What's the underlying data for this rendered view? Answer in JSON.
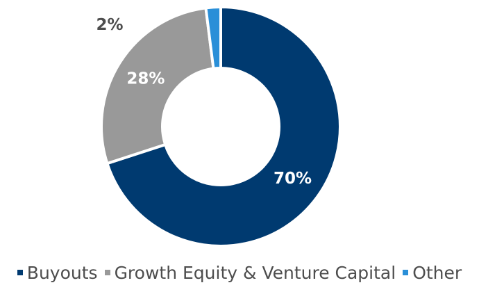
{
  "chart_data": {
    "type": "pie",
    "variant": "donut",
    "title": "",
    "categories": [
      "Buyouts",
      "Growth Equity & Venture Capital",
      "Other"
    ],
    "values": [
      70,
      28,
      2
    ],
    "labels": [
      "70%",
      "28%",
      "2%"
    ],
    "colors": [
      "#003a70",
      "#999999",
      "#2a8fd8"
    ],
    "label_colors": [
      "#ffffff",
      "#ffffff",
      "#4d4d4d"
    ],
    "legend_position": "bottom",
    "start": "top, clockwise"
  },
  "legend": {
    "items": [
      {
        "label": "Buyouts",
        "color": "#003a70"
      },
      {
        "label": "Growth Equity & Venture Capital",
        "color": "#999999"
      },
      {
        "label": "Other",
        "color": "#2a8fd8"
      }
    ]
  }
}
